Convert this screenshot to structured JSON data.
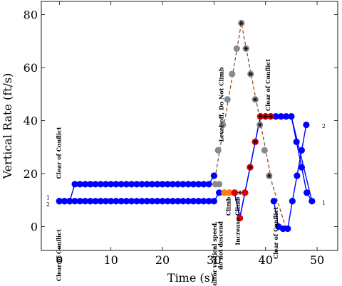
{
  "chart_data": {
    "type": "line",
    "xlabel": "Time (s)",
    "ylabel": "Vertical Rate (ft/s)",
    "xlim": [
      -3.5,
      54
    ],
    "ylim": [
      -9,
      85
    ],
    "xticks": [
      0,
      10,
      20,
      30,
      40,
      50
    ],
    "yticks": [
      0,
      20,
      40,
      60,
      80
    ],
    "grid": false,
    "colors": {
      "coc": "#0000ff",
      "monitor": "#888a90",
      "climb": "#ff7f0e",
      "increase_climb": "#e00000",
      "level_off": "#888a90",
      "line_aircraft_1": "#0000ff",
      "line_aircraft_2": "#8b4513"
    },
    "series": [
      {
        "name": "1",
        "points": [
          {
            "x": 0,
            "y": 9.6,
            "a": "coc"
          },
          {
            "x": 1,
            "y": 9.6,
            "a": "coc"
          },
          {
            "x": 2,
            "y": 9.6,
            "a": "coc"
          },
          {
            "x": 3,
            "y": 9.6,
            "a": "coc"
          },
          {
            "x": 4,
            "y": 9.6,
            "a": "coc"
          },
          {
            "x": 5,
            "y": 9.6,
            "a": "coc"
          },
          {
            "x": 6,
            "y": 9.6,
            "a": "coc"
          },
          {
            "x": 7,
            "y": 9.6,
            "a": "coc"
          },
          {
            "x": 8,
            "y": 9.6,
            "a": "coc"
          },
          {
            "x": 9,
            "y": 9.6,
            "a": "coc"
          },
          {
            "x": 10,
            "y": 9.6,
            "a": "coc"
          },
          {
            "x": 11,
            "y": 9.6,
            "a": "coc"
          },
          {
            "x": 12,
            "y": 9.6,
            "a": "coc"
          },
          {
            "x": 13,
            "y": 9.6,
            "a": "coc"
          },
          {
            "x": 14,
            "y": 9.6,
            "a": "coc"
          },
          {
            "x": 15,
            "y": 9.6,
            "a": "coc"
          },
          {
            "x": 16,
            "y": 9.6,
            "a": "coc"
          },
          {
            "x": 17,
            "y": 9.6,
            "a": "coc"
          },
          {
            "x": 18,
            "y": 9.6,
            "a": "coc"
          },
          {
            "x": 19,
            "y": 9.6,
            "a": "coc"
          },
          {
            "x": 20,
            "y": 9.6,
            "a": "coc"
          },
          {
            "x": 21,
            "y": 9.6,
            "a": "coc"
          },
          {
            "x": 22,
            "y": 9.6,
            "a": "coc"
          },
          {
            "x": 23,
            "y": 9.6,
            "a": "coc"
          },
          {
            "x": 24,
            "y": 9.6,
            "a": "coc"
          },
          {
            "x": 25,
            "y": 9.6,
            "a": "coc"
          },
          {
            "x": 26,
            "y": 9.6,
            "a": "coc"
          },
          {
            "x": 27,
            "y": 9.6,
            "a": "coc"
          },
          {
            "x": 28,
            "y": 9.6,
            "a": "coc"
          },
          {
            "x": 29,
            "y": 9.6,
            "a": "coc"
          },
          {
            "x": 30,
            "y": 9.6,
            "a": "coc"
          },
          {
            "x": 31,
            "y": 12.8,
            "a": "coc"
          },
          {
            "x": 32,
            "y": 12.8,
            "a": "coc"
          },
          {
            "x": 33,
            "y": 12.8,
            "a": "coc"
          },
          {
            "x": 34,
            "y": 12.8,
            "a": "coc"
          },
          {
            "x": 35,
            "y": 3.2,
            "a": "coc"
          },
          {
            "x": 36,
            "y": 12.8,
            "a": "coc"
          },
          {
            "x": 37,
            "y": 22.4,
            "a": "coc"
          },
          {
            "x": 38,
            "y": 32.0,
            "a": "coc"
          },
          {
            "x": 39,
            "y": 41.6,
            "a": "coc"
          },
          {
            "x": 40,
            "y": 41.6,
            "a": "coc"
          },
          {
            "x": 41,
            "y": 41.6,
            "a": "coc"
          },
          {
            "x": 42,
            "y": 41.6,
            "a": "coc"
          },
          {
            "x": 43,
            "y": 41.6,
            "a": "coc"
          },
          {
            "x": 44,
            "y": 41.6,
            "a": "coc"
          },
          {
            "x": 45,
            "y": 41.6,
            "a": "coc"
          },
          {
            "x": 46,
            "y": 32.0,
            "a": "coc"
          },
          {
            "x": 47,
            "y": 22.4,
            "a": "coc"
          },
          {
            "x": 48,
            "y": 12.8,
            "a": "coc"
          },
          {
            "x": 49,
            "y": 9.6,
            "a": "coc"
          }
        ]
      },
      {
        "name": "2",
        "points": [
          {
            "x": 0,
            "y": 9.6,
            "a": "coc"
          },
          {
            "x": 1,
            "y": 9.6,
            "a": "coc"
          },
          {
            "x": 2,
            "y": 9.6,
            "a": "coc"
          },
          {
            "x": 3,
            "y": 16.0,
            "a": "coc"
          },
          {
            "x": 4,
            "y": 16.0,
            "a": "coc"
          },
          {
            "x": 5,
            "y": 16.0,
            "a": "coc"
          },
          {
            "x": 6,
            "y": 16.0,
            "a": "coc"
          },
          {
            "x": 7,
            "y": 16.0,
            "a": "coc"
          },
          {
            "x": 8,
            "y": 16.0,
            "a": "coc"
          },
          {
            "x": 9,
            "y": 16.0,
            "a": "coc"
          },
          {
            "x": 10,
            "y": 16.0,
            "a": "coc"
          },
          {
            "x": 11,
            "y": 16.0,
            "a": "coc"
          },
          {
            "x": 12,
            "y": 16.0,
            "a": "coc"
          },
          {
            "x": 13,
            "y": 16.0,
            "a": "coc"
          },
          {
            "x": 14,
            "y": 16.0,
            "a": "coc"
          },
          {
            "x": 15,
            "y": 16.0,
            "a": "coc"
          },
          {
            "x": 16,
            "y": 16.0,
            "a": "coc"
          },
          {
            "x": 17,
            "y": 16.0,
            "a": "coc"
          },
          {
            "x": 18,
            "y": 16.0,
            "a": "coc"
          },
          {
            "x": 19,
            "y": 16.0,
            "a": "coc"
          },
          {
            "x": 20,
            "y": 16.0,
            "a": "coc"
          },
          {
            "x": 21,
            "y": 16.0,
            "a": "coc"
          },
          {
            "x": 22,
            "y": 16.0,
            "a": "coc"
          },
          {
            "x": 23,
            "y": 16.0,
            "a": "coc"
          },
          {
            "x": 24,
            "y": 16.0,
            "a": "coc"
          },
          {
            "x": 25,
            "y": 16.0,
            "a": "coc"
          },
          {
            "x": 26,
            "y": 16.0,
            "a": "coc"
          },
          {
            "x": 27,
            "y": 16.0,
            "a": "coc"
          },
          {
            "x": 28,
            "y": 16.0,
            "a": "coc"
          },
          {
            "x": 29,
            "y": 16.0,
            "a": "coc"
          },
          {
            "x": 30,
            "y": 19.2,
            "a": "coc"
          },
          {
            "x": 30.3,
            "y": 16.0,
            "a": "monitor"
          },
          {
            "x": 31,
            "y": 16.0,
            "a": "monitor"
          },
          {
            "x": 32,
            "y": 12.8,
            "a": "climb"
          },
          {
            "x": 33,
            "y": 12.8,
            "a": "climb"
          },
          {
            "x": 34,
            "y": 12.8,
            "a": "increase_climb"
          },
          {
            "x": 30.8,
            "y": 28.8,
            "a": "level_off"
          },
          {
            "x": 31.7,
            "y": 38.4,
            "a": "level_off"
          },
          {
            "x": 32.6,
            "y": 48.0,
            "a": "level_off"
          },
          {
            "x": 33.5,
            "y": 57.6,
            "a": "level_off"
          },
          {
            "x": 34.4,
            "y": 67.2,
            "a": "level_off"
          },
          {
            "x": 35.3,
            "y": 76.8,
            "a": "level_off"
          },
          {
            "x": 36.2,
            "y": 67.2,
            "a": "level_off"
          },
          {
            "x": 37.1,
            "y": 57.6,
            "a": "level_off"
          },
          {
            "x": 38.0,
            "y": 48.0,
            "a": "level_off"
          },
          {
            "x": 38.9,
            "y": 38.4,
            "a": "level_off"
          },
          {
            "x": 39.8,
            "y": 28.8,
            "a": "level_off"
          },
          {
            "x": 40.7,
            "y": 19.2,
            "a": "level_off"
          },
          {
            "x": 41.6,
            "y": 9.6,
            "a": "coc"
          },
          {
            "x": 42.5,
            "y": 0.0,
            "a": "coc"
          },
          {
            "x": 43.4,
            "y": -0.8,
            "a": "coc"
          },
          {
            "x": 44.3,
            "y": -0.8,
            "a": "coc"
          },
          {
            "x": 45.2,
            "y": 9.6,
            "a": "coc"
          },
          {
            "x": 46.1,
            "y": 19.2,
            "a": "coc"
          },
          {
            "x": 47.0,
            "y": 28.8,
            "a": "coc"
          },
          {
            "x": 47.9,
            "y": 38.4,
            "a": "coc"
          }
        ]
      }
    ],
    "series_2_trend": [
      {
        "x": 30.0,
        "y": 16.0
      },
      {
        "x": 35.3,
        "y": 76.8
      },
      {
        "x": 41.3,
        "y": 16.0
      },
      {
        "x": 44.0,
        "y": -0.8
      }
    ],
    "series_1_trend": [
      {
        "x": 34.0,
        "y": 12.8
      },
      {
        "x": 35.0,
        "y": 3.2
      },
      {
        "x": 36.0,
        "y": 12.8
      },
      {
        "x": 39.0,
        "y": 41.6
      },
      {
        "x": 45.0,
        "y": 41.6
      },
      {
        "x": 49.0,
        "y": 9.6
      }
    ],
    "star_markers": [
      {
        "x": 35.3,
        "y": 76.8
      },
      {
        "x": 36.2,
        "y": 67.2
      },
      {
        "x": 37.1,
        "y": 57.6
      },
      {
        "x": 38.0,
        "y": 48.0
      },
      {
        "x": 38.9,
        "y": 38.4
      },
      {
        "x": 40.7,
        "y": 19.2
      },
      {
        "x": 35.0,
        "y": 12.8
      },
      {
        "x": 37.0,
        "y": 22.4
      },
      {
        "x": 38.0,
        "y": 32.0
      },
      {
        "x": 39.0,
        "y": 41.6
      },
      {
        "x": 40.0,
        "y": 41.6
      },
      {
        "x": 41.0,
        "y": 41.6
      }
    ],
    "red_points": [
      {
        "x": 34.0,
        "y": 12.8
      },
      {
        "x": 35.0,
        "y": 3.2
      },
      {
        "x": 36.0,
        "y": 12.8
      },
      {
        "x": 37.0,
        "y": 22.4
      },
      {
        "x": 38.0,
        "y": 32.0
      },
      {
        "x": 39.0,
        "y": 41.6
      },
      {
        "x": 40.0,
        "y": 41.6
      },
      {
        "x": 41.0,
        "y": 41.6
      }
    ],
    "series_end_labels": [
      {
        "text": "1",
        "x": -2.2,
        "y": 11.0
      },
      {
        "text": "2",
        "x": -2.2,
        "y": 8.4
      },
      {
        "text": "1",
        "x": 51.3,
        "y": 9.0
      },
      {
        "text": "2",
        "x": 51.3,
        "y": 38.0
      }
    ],
    "annotations": [
      {
        "text": "Clear of Conflict",
        "x": 0.3,
        "y": -1.0,
        "anchor": "end"
      },
      {
        "text": "Clear of Conflict",
        "x": 0.3,
        "y": 18.0,
        "anchor": "start"
      },
      {
        "text": "Monitor vertical speed,",
        "x": 30.5,
        "y": 2.0,
        "anchor": "end"
      },
      {
        "text": "do not descend",
        "x": 31.7,
        "y": 2.0,
        "anchor": "end"
      },
      {
        "text": "Level-off, Do Not Climb",
        "x": 31.8,
        "y": 32.0,
        "anchor": "start"
      },
      {
        "text": "Climb",
        "x": 33.2,
        "y": 11.2,
        "anchor": "end"
      },
      {
        "text": "Increase Climb",
        "x": 35.0,
        "y": 11.2,
        "anchor": "end"
      },
      {
        "text": "Clear of Conflict",
        "x": 40.9,
        "y": 43.6,
        "anchor": "start"
      },
      {
        "text": "Clear of Conflict",
        "x": 42.4,
        "y": 7.4,
        "anchor": "end"
      }
    ]
  }
}
